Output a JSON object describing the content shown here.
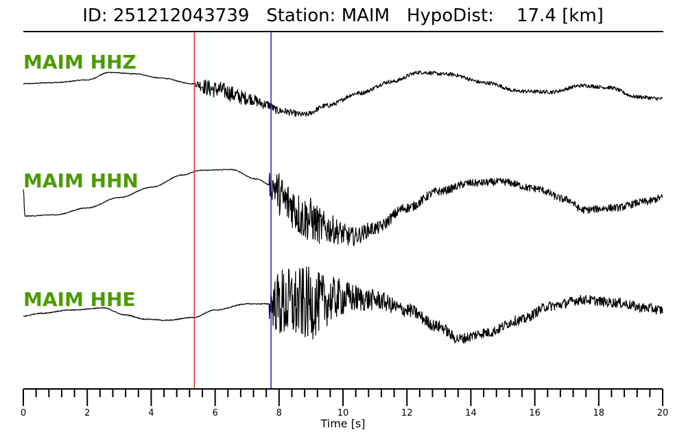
{
  "header": {
    "id_label": "ID:",
    "id_value": "251212043739",
    "station_label": "Station:",
    "station_value": "MAIM",
    "dist_label": "HypoDist:",
    "dist_value": "17.4",
    "dist_unit": "[km]"
  },
  "chart_data": {
    "type": "line",
    "title": "ID: 251212043739   Station: MAIM   HypoDist:    17.4 [km]",
    "xlabel": "Time [s]",
    "ylabel": "",
    "xlim": [
      0,
      20
    ],
    "xticks": [
      0,
      2,
      4,
      6,
      8,
      10,
      12,
      14,
      16,
      18,
      20
    ],
    "minor_tick_step": 0.4,
    "grid": false,
    "picks": [
      {
        "phase": "P",
        "time": 5.35,
        "color": "#e8342e"
      },
      {
        "phase": "S",
        "time": 7.75,
        "color": "#2c2cde"
      }
    ],
    "series": [
      {
        "name": "MAIM HHZ",
        "pick_time": 5.35,
        "noise_pre": 0.012,
        "noise_post": [
          0.06,
          0.22,
          0.05
        ],
        "keypoints": [
          [
            0,
            0.6
          ],
          [
            1,
            0.63
          ],
          [
            2,
            0.7
          ],
          [
            2.7,
            0.9
          ],
          [
            3.5,
            0.86
          ],
          [
            4.3,
            0.75
          ],
          [
            5.3,
            0.6
          ],
          [
            6,
            0.45
          ],
          [
            7,
            0.22
          ],
          [
            7.6,
            0.05
          ],
          [
            8,
            -0.12
          ],
          [
            8.8,
            -0.22
          ],
          [
            9.5,
            0.02
          ],
          [
            10.5,
            0.35
          ],
          [
            11.5,
            0.65
          ],
          [
            12.4,
            0.9
          ],
          [
            13.3,
            0.85
          ],
          [
            14.5,
            0.62
          ],
          [
            15.5,
            0.4
          ],
          [
            16.5,
            0.38
          ],
          [
            17.5,
            0.55
          ],
          [
            18.3,
            0.5
          ],
          [
            19.2,
            0.25
          ],
          [
            20,
            0.2
          ]
        ]
      },
      {
        "name": "MAIM HHN",
        "pick_time": 7.7,
        "noise_pre": 0.01,
        "noise_post": [
          0.3,
          0.55,
          0.09
        ],
        "keypoints": [
          [
            0,
            0.4
          ],
          [
            0.05,
            -0.25
          ],
          [
            1,
            -0.22
          ],
          [
            2,
            -0.05
          ],
          [
            3,
            0.2
          ],
          [
            4,
            0.45
          ],
          [
            5,
            0.75
          ],
          [
            5.5,
            0.86
          ],
          [
            6.5,
            0.88
          ],
          [
            7.3,
            0.65
          ],
          [
            7.75,
            0.5
          ],
          [
            8.3,
            0.05
          ],
          [
            8.8,
            -0.3
          ],
          [
            9.5,
            -0.55
          ],
          [
            10.3,
            -0.75
          ],
          [
            11,
            -0.55
          ],
          [
            12,
            -0.05
          ],
          [
            13,
            0.35
          ],
          [
            14,
            0.55
          ],
          [
            15,
            0.58
          ],
          [
            16,
            0.42
          ],
          [
            17,
            0.15
          ],
          [
            17.5,
            -0.1
          ],
          [
            18.5,
            -0.05
          ],
          [
            19.5,
            0.1
          ],
          [
            20,
            0.2
          ]
        ]
      },
      {
        "name": "MAIM HHE",
        "pick_time": 7.7,
        "noise_pre": 0.012,
        "noise_post": [
          0.4,
          0.9,
          0.12
        ],
        "keypoints": [
          [
            0,
            0.15
          ],
          [
            0.5,
            0.22
          ],
          [
            1.5,
            0.3
          ],
          [
            2.5,
            0.35
          ],
          [
            3.2,
            0.18
          ],
          [
            3.8,
            0.08
          ],
          [
            4.5,
            0.05
          ],
          [
            5.3,
            0.12
          ],
          [
            6,
            0.3
          ],
          [
            7,
            0.45
          ],
          [
            8,
            0.45
          ],
          [
            9,
            0.45
          ],
          [
            10,
            0.6
          ],
          [
            11,
            0.55
          ],
          [
            12,
            0.3
          ],
          [
            13,
            -0.1
          ],
          [
            13.6,
            -0.4
          ],
          [
            14.5,
            -0.25
          ],
          [
            15.5,
            0.05
          ],
          [
            16.5,
            0.4
          ],
          [
            17.5,
            0.55
          ],
          [
            18.5,
            0.48
          ],
          [
            19.5,
            0.35
          ],
          [
            20,
            0.3
          ]
        ]
      }
    ]
  }
}
